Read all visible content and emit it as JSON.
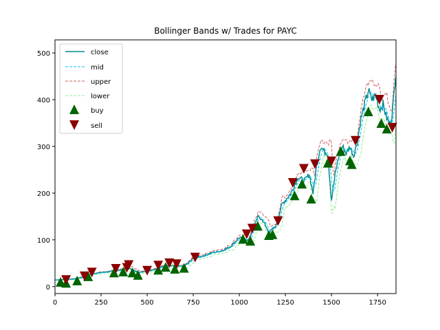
{
  "chart_data": {
    "type": "line",
    "title": "Bollinger Bands w/ Trades for PAYC",
    "xlabel": "",
    "ylabel": "",
    "xlim": [
      0,
      1850
    ],
    "ylim": [
      -15,
      528
    ],
    "xticks": [
      0,
      250,
      500,
      750,
      1000,
      1250,
      1500,
      1750
    ],
    "yticks": [
      0,
      100,
      200,
      300,
      400,
      500
    ],
    "grid": false,
    "legend_position": "top-left",
    "colors": {
      "close": "#008b8b",
      "mid": "#00bfff",
      "upper": "#cd5c5c",
      "lower": "#90ee90",
      "buy": "#006400",
      "sell": "#8b0000"
    },
    "series": [
      {
        "name": "close",
        "style": "solid"
      },
      {
        "name": "mid",
        "style": "dashed"
      },
      {
        "name": "upper",
        "style": "dashed"
      },
      {
        "name": "lower",
        "style": "dashed"
      }
    ],
    "close_points": [
      [
        0,
        14
      ],
      [
        50,
        15
      ],
      [
        100,
        16
      ],
      [
        150,
        20
      ],
      [
        200,
        27
      ],
      [
        250,
        30
      ],
      [
        300,
        32
      ],
      [
        350,
        35
      ],
      [
        400,
        40
      ],
      [
        450,
        30
      ],
      [
        500,
        33
      ],
      [
        550,
        38
      ],
      [
        600,
        45
      ],
      [
        650,
        44
      ],
      [
        700,
        43
      ],
      [
        750,
        60
      ],
      [
        800,
        65
      ],
      [
        850,
        72
      ],
      [
        900,
        76
      ],
      [
        950,
        85
      ],
      [
        1000,
        105
      ],
      [
        1050,
        98
      ],
      [
        1080,
        130
      ],
      [
        1100,
        150
      ],
      [
        1130,
        140
      ],
      [
        1160,
        115
      ],
      [
        1200,
        130
      ],
      [
        1230,
        175
      ],
      [
        1250,
        185
      ],
      [
        1280,
        200
      ],
      [
        1320,
        235
      ],
      [
        1350,
        225
      ],
      [
        1380,
        240
      ],
      [
        1400,
        200
      ],
      [
        1420,
        260
      ],
      [
        1440,
        300
      ],
      [
        1460,
        290
      ],
      [
        1480,
        285
      ],
      [
        1500,
        185
      ],
      [
        1520,
        240
      ],
      [
        1540,
        280
      ],
      [
        1560,
        300
      ],
      [
        1580,
        285
      ],
      [
        1600,
        300
      ],
      [
        1620,
        280
      ],
      [
        1640,
        310
      ],
      [
        1660,
        360
      ],
      [
        1680,
        390
      ],
      [
        1700,
        420
      ],
      [
        1720,
        400
      ],
      [
        1740,
        410
      ],
      [
        1760,
        380
      ],
      [
        1780,
        390
      ],
      [
        1800,
        360
      ],
      [
        1820,
        345
      ],
      [
        1835,
        390
      ],
      [
        1850,
        470
      ]
    ],
    "buy_points": [
      [
        30,
        10
      ],
      [
        60,
        8
      ],
      [
        120,
        13
      ],
      [
        180,
        22
      ],
      [
        320,
        30
      ],
      [
        370,
        32
      ],
      [
        420,
        30
      ],
      [
        450,
        25
      ],
      [
        560,
        36
      ],
      [
        600,
        42
      ],
      [
        650,
        38
      ],
      [
        700,
        40
      ],
      [
        1020,
        102
      ],
      [
        1060,
        98
      ],
      [
        1100,
        130
      ],
      [
        1160,
        110
      ],
      [
        1180,
        112
      ],
      [
        1300,
        195
      ],
      [
        1340,
        220
      ],
      [
        1390,
        188
      ],
      [
        1480,
        265
      ],
      [
        1550,
        290
      ],
      [
        1600,
        270
      ],
      [
        1610,
        262
      ],
      [
        1700,
        375
      ],
      [
        1770,
        350
      ],
      [
        1800,
        338
      ]
    ],
    "sell_points": [
      [
        60,
        14
      ],
      [
        160,
        22
      ],
      [
        200,
        30
      ],
      [
        330,
        38
      ],
      [
        390,
        40
      ],
      [
        400,
        46
      ],
      [
        500,
        34
      ],
      [
        560,
        45
      ],
      [
        620,
        50
      ],
      [
        660,
        48
      ],
      [
        760,
        62
      ],
      [
        1040,
        112
      ],
      [
        1070,
        124
      ],
      [
        1210,
        140
      ],
      [
        1290,
        222
      ],
      [
        1350,
        252
      ],
      [
        1410,
        262
      ],
      [
        1500,
        268
      ],
      [
        1630,
        312
      ],
      [
        1760,
        400
      ],
      [
        1830,
        340
      ]
    ],
    "legend": [
      {
        "label": "close",
        "kind": "line"
      },
      {
        "label": "mid",
        "kind": "dashed"
      },
      {
        "label": "upper",
        "kind": "dashed"
      },
      {
        "label": "lower",
        "kind": "dashed"
      },
      {
        "label": "buy",
        "kind": "triangle-up"
      },
      {
        "label": "sell",
        "kind": "triangle-down"
      }
    ]
  }
}
